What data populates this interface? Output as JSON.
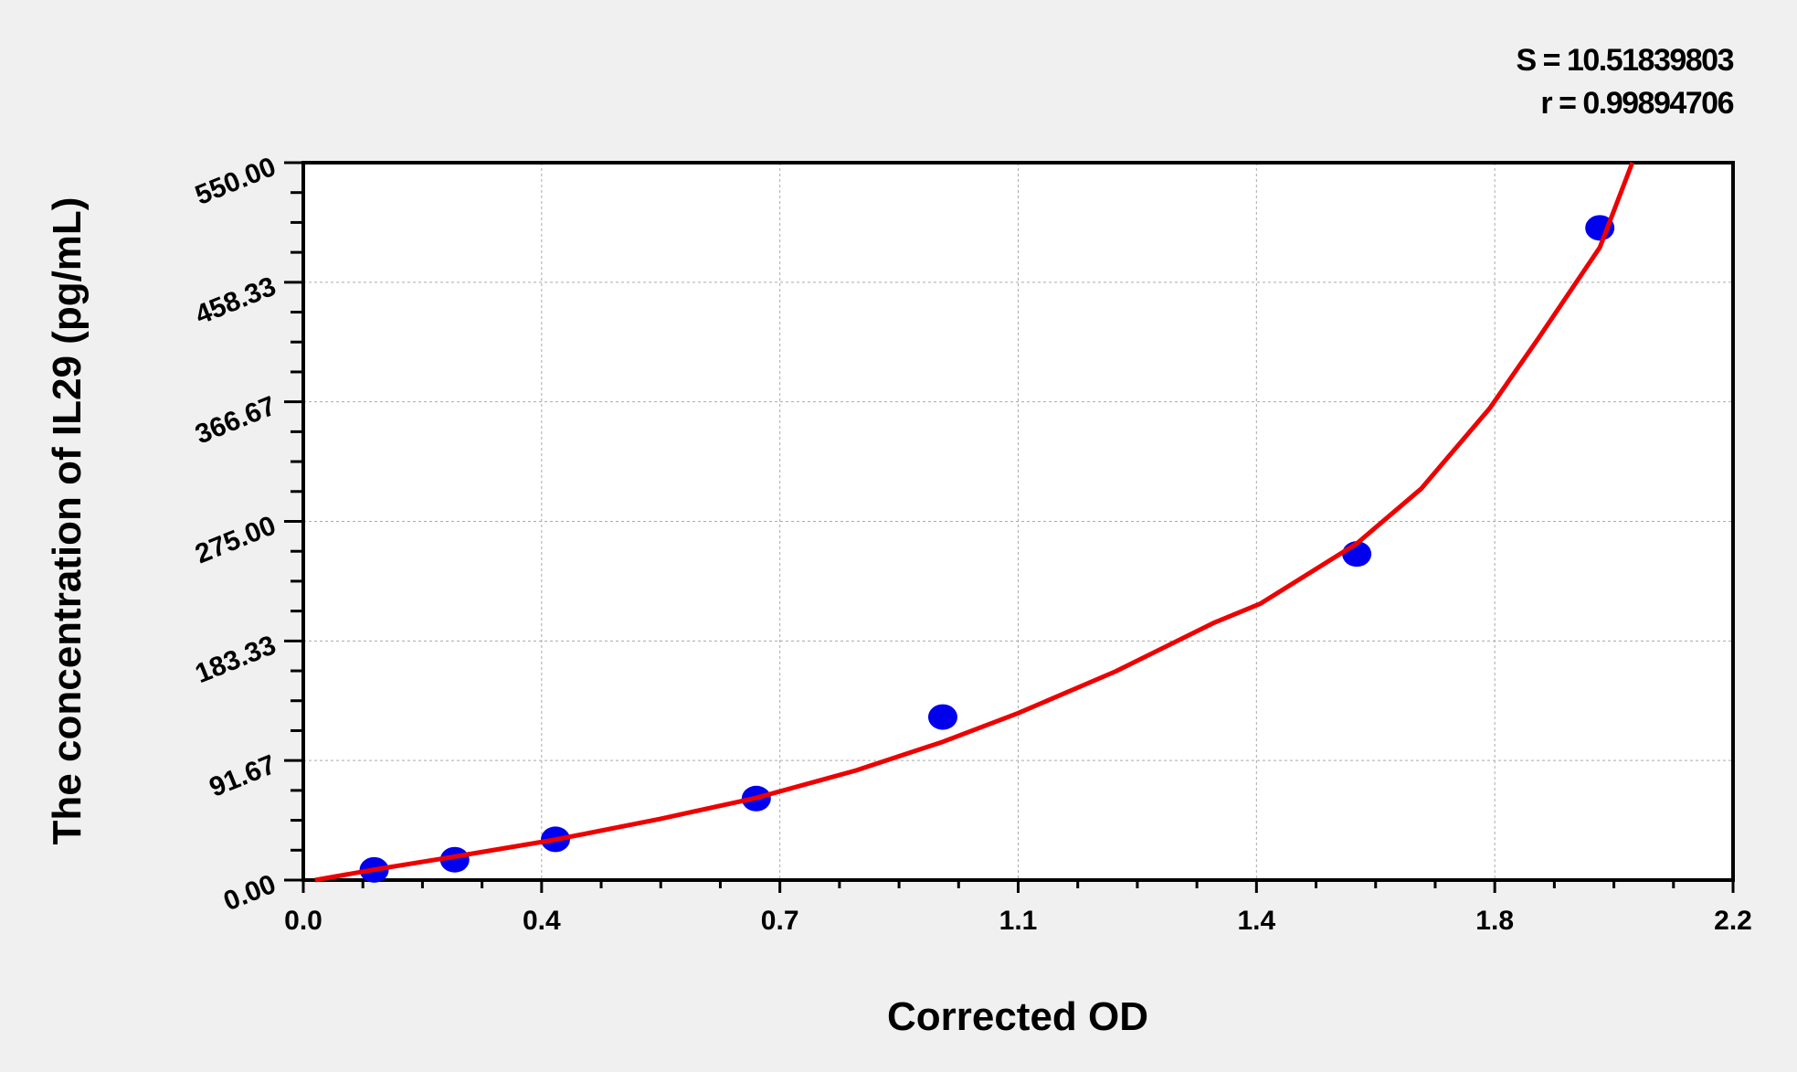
{
  "chart_data": {
    "type": "scatter",
    "xlabel": "Corrected OD",
    "ylabel": "The concentration of IL29 (pg/mL)",
    "xlim": [
      0,
      2.2
    ],
    "ylim": [
      0,
      550
    ],
    "x_tick_labels": [
      "0.0",
      "0.4",
      "0.7",
      "1.1",
      "1.4",
      "1.8",
      "2.2"
    ],
    "y_tick_labels": [
      "0.00",
      "91.67",
      "183.33",
      "275.00",
      "366.67",
      "458.33",
      "550.00"
    ],
    "grid": true,
    "annotations": {
      "s": "S = 10.51839803",
      "r": "r = 0.99894706"
    },
    "points": {
      "color": "#0000ee",
      "x": [
        0.109,
        0.233,
        0.388,
        0.697,
        0.984,
        1.621,
        1.995
      ],
      "y": [
        7.8,
        15.6,
        31.25,
        62.5,
        125,
        250,
        500
      ]
    },
    "fit_curve": {
      "color": "#ee0000",
      "x": [
        0.018,
        0.109,
        0.233,
        0.388,
        0.55,
        0.697,
        0.85,
        0.984,
        1.1,
        1.25,
        1.4,
        1.473,
        1.621,
        1.72,
        1.826,
        1.9,
        1.995,
        2.045
      ],
      "y": [
        0,
        8,
        18,
        31,
        47,
        63,
        84,
        106,
        128,
        160,
        197,
        212,
        258,
        300,
        362,
        415,
        485,
        550
      ]
    }
  }
}
